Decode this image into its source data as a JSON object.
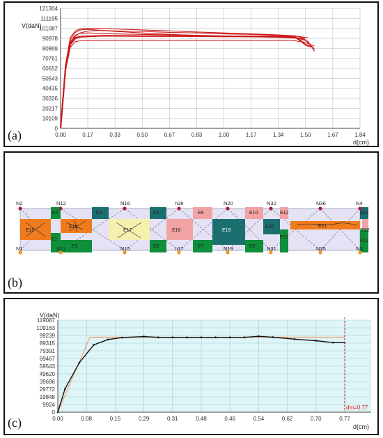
{
  "panel_labels": {
    "a": "(a)",
    "b": "(b)",
    "c": "(c)"
  },
  "colors": {
    "curve_a": "#cc1a1a",
    "grid": "#c8c8c8",
    "axis": "#444444",
    "beam_bg": "#e4e2f4",
    "beam_line": "#8a8aa0",
    "green": "#0f8f3a",
    "teal": "#1b6f6f",
    "pink": "#f2a3a3",
    "orange": "#f07b1c",
    "yellow": "#f4f0ae",
    "node_top": "#a41d3c",
    "node_bottom": "#f0961d",
    "c_bg": "#def4f7",
    "c_grid": "#9ccfd6",
    "c_curve": "#111111",
    "c_ideal": "#f0a070",
    "c_marker": "#e01818"
  },
  "chart_data": [
    {
      "type": "line",
      "title": "",
      "ylabel": "V(daN)",
      "xlabel": "d(cm)",
      "x_ticks": [
        "0.00",
        "0.17",
        "0.33",
        "0.50",
        "0.67",
        "0.83",
        "1.00",
        "1.17",
        "1.34",
        "1.50",
        "1.67",
        "1.84"
      ],
      "y_ticks": [
        "0",
        "10109",
        "20217",
        "30326",
        "40435",
        "50543",
        "60652",
        "70761",
        "80869",
        "90978",
        "101087",
        "111195",
        "121304"
      ],
      "xlim": [
        0,
        1.84
      ],
      "ylim": [
        0,
        121304
      ],
      "grid": true,
      "series": [
        {
          "x": [
            0,
            0.03,
            0.06,
            0.09,
            0.12,
            0.17,
            0.25,
            0.33,
            0.5,
            0.67,
            0.83,
            1.0,
            1.17,
            1.34,
            1.44,
            1.48,
            1.5,
            1.52,
            1.54
          ],
          "y": [
            0,
            60000,
            85000,
            91000,
            92500,
            93000,
            93500,
            93500,
            93200,
            93200,
            93200,
            93000,
            93000,
            92800,
            92500,
            88000,
            85000,
            83500,
            82500
          ]
        },
        {
          "x": [
            0,
            0.03,
            0.06,
            0.09,
            0.12,
            0.17,
            0.25,
            0.33,
            0.5,
            0.67,
            0.83,
            1.0,
            1.17,
            1.34,
            1.44,
            1.5,
            1.54
          ],
          "y": [
            0,
            62000,
            88000,
            94000,
            96000,
            96500,
            96000,
            95500,
            95000,
            94500,
            94000,
            93500,
            93000,
            92500,
            92000,
            90000,
            84000
          ]
        },
        {
          "x": [
            0,
            0.03,
            0.06,
            0.09,
            0.12,
            0.17,
            0.25,
            0.33,
            0.5,
            0.67,
            0.83,
            1.0,
            1.17,
            1.34,
            1.44,
            1.5
          ],
          "y": [
            0,
            64000,
            92000,
            98500,
            100500,
            101200,
            101000,
            100500,
            99500,
            98500,
            97500,
            96500,
            95500,
            94500,
            93500,
            91000
          ]
        },
        {
          "x": [
            0,
            0.03,
            0.06,
            0.09,
            0.12,
            0.17,
            0.25,
            0.33,
            0.5,
            0.67,
            0.83,
            1.0,
            1.17,
            1.34,
            1.44,
            1.52
          ],
          "y": [
            0,
            60000,
            86000,
            93000,
            96500,
            98500,
            99000,
            98500,
            98000,
            97000,
            96500,
            95500,
            95000,
            94000,
            93500,
            91500
          ]
        },
        {
          "x": [
            0,
            0.03,
            0.06,
            0.09,
            0.12,
            0.17,
            0.25,
            0.33,
            0.5,
            0.67,
            0.83,
            1.0,
            1.17,
            1.34,
            1.42,
            1.5,
            1.56
          ],
          "y": [
            0,
            58000,
            82000,
            87500,
            88500,
            88800,
            89000,
            89000,
            89000,
            89000,
            89000,
            89000,
            89000,
            89000,
            89000,
            87000,
            83000
          ]
        },
        {
          "x": [
            0,
            0.03,
            0.06,
            0.09,
            0.12,
            0.17,
            0.25,
            0.33,
            0.5,
            0.67,
            0.83,
            1.0,
            1.17,
            1.34,
            1.46,
            1.52,
            1.56
          ],
          "y": [
            0,
            63000,
            90000,
            97000,
            99500,
            100000,
            99000,
            98000,
            96500,
            95000,
            94000,
            93000,
            92500,
            92000,
            91000,
            88000,
            78000
          ]
        },
        {
          "x": [
            0,
            0.03,
            0.06,
            0.09,
            0.12,
            0.17,
            0.25,
            0.33,
            0.5,
            0.67,
            0.83,
            1.0,
            1.17,
            1.34,
            1.44,
            1.5,
            1.56
          ],
          "y": [
            0,
            61000,
            87000,
            92000,
            93000,
            93500,
            93500,
            93500,
            93500,
            93500,
            93200,
            93000,
            92800,
            92500,
            92000,
            90000,
            80000
          ]
        }
      ]
    },
    {
      "type": "line",
      "title": "",
      "ylabel": "V(daN)",
      "xlabel": "d(cm)",
      "x_ticks": [
        "0.00",
        "0.08",
        "0.15",
        "0.29",
        "0.31",
        "0.48",
        "0.46",
        "0.54",
        "0.62",
        "0.70",
        "0.77"
      ],
      "y_ticks": [
        "0",
        "9924",
        "19848",
        "29772",
        "39696",
        "49620",
        "59543",
        "69467",
        "79391",
        "89315",
        "99239",
        "109163",
        "119087"
      ],
      "ylim": [
        0,
        119087
      ],
      "grid": true,
      "series": [
        {
          "x": [
            0,
            1,
            2,
            3,
            4,
            5,
            6,
            7,
            8,
            9,
            10
          ],
          "y": [
            0,
            0,
            0,
            0,
            0,
            0,
            0,
            0,
            0,
            0,
            0
          ],
          "points_y": [
            0,
            30000,
            64000,
            87000,
            94000,
            96500,
            97800,
            96800,
            96800,
            96800,
            96800,
            96800,
            96800,
            96800,
            98200,
            97000,
            94500,
            92500,
            90000,
            90000
          ],
          "points_x": [
            0,
            0.25,
            0.75,
            1.25,
            1.75,
            2.25,
            3,
            3.5,
            4,
            4.5,
            5,
            5.5,
            6,
            6.5,
            7,
            7.5,
            8.25,
            9,
            9.6,
            10
          ]
        },
        {
          "points_x": [
            0,
            1.12,
            10
          ],
          "points_y": [
            0,
            97000,
            97000
          ]
        }
      ],
      "marker_label": "dm=0.77"
    }
  ],
  "beam": {
    "top_nodes": [
      "N2",
      "N12",
      "N16",
      "n38",
      "N20",
      "N32",
      "N36",
      "N4"
    ],
    "bottom_nodes": [
      "N1",
      "N11",
      "N15",
      "n37",
      "N19",
      "N31",
      "N35",
      "N3"
    ],
    "elements": [
      "E15",
      "E2",
      "E16",
      "E4",
      "E17",
      "E6",
      "E18",
      "E8",
      "E19",
      "E10",
      "E20",
      "E12",
      "E21",
      "E14",
      "E22",
      "E1",
      "E3",
      "E5",
      "E7",
      "E9",
      "E11",
      "E13"
    ]
  }
}
